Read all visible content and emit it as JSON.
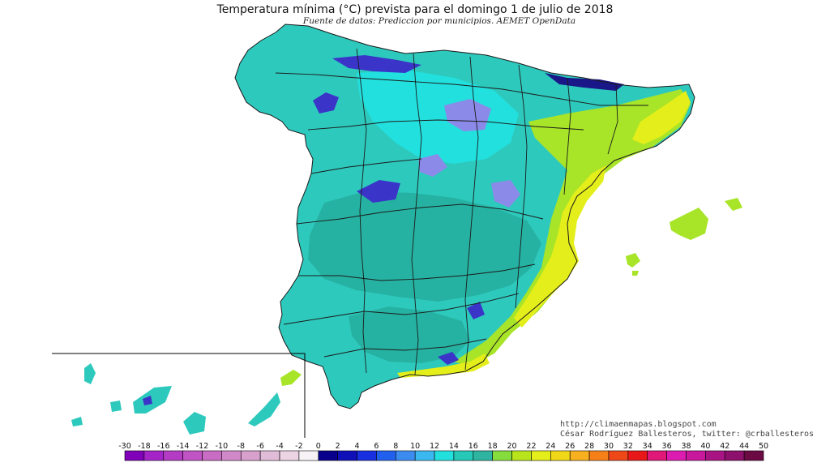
{
  "title": "Temperatura mínima (°C) prevista para el domingo 1 de julio de 2018",
  "source": "Fuente de datos: Prediccion por municipios. AEMET OpenData",
  "credit": {
    "line1": "http://climaenmapas.blogspot.com",
    "line2": "César Rodríguez Ballesteros, twitter: @crballesteros"
  },
  "palette": {
    "base": "#2ec9bd",
    "dark": "#26b2a2",
    "cyan": "#22e0de",
    "yellow_green": "#a8e428",
    "green": "#5fd84a",
    "yellow": "#e4ee1a",
    "blue": "#3a34c8",
    "navy": "#1a1888",
    "lilac": "#8c8ae8",
    "border": "#1a1a1a"
  },
  "legend": {
    "labels": [
      "-30",
      "-18",
      "-16",
      "-14",
      "-12",
      "-10",
      "-8",
      "-6",
      "-4",
      "-2",
      "0",
      "2",
      "4",
      "6",
      "8",
      "10",
      "12",
      "14",
      "16",
      "18",
      "20",
      "22",
      "24",
      "26",
      "28",
      "30",
      "32",
      "34",
      "36",
      "38",
      "40",
      "42",
      "44",
      "50"
    ],
    "colors": [
      "#7f00b8",
      "#a424c8",
      "#b43cc4",
      "#c054c4",
      "#c86cc4",
      "#d088c8",
      "#d8a0cc",
      "#e0bcd8",
      "#ecd4e4",
      "#f6f2f6",
      "#08008a",
      "#1010b8",
      "#1830e0",
      "#2060ec",
      "#3c8cf0",
      "#3cb8f0",
      "#22e0de",
      "#26c8b8",
      "#2eb4a0",
      "#86dc3c",
      "#b8e41c",
      "#e4ee1a",
      "#f0d818",
      "#f6b020",
      "#f68018",
      "#ee4818",
      "#e81818",
      "#e01878",
      "#dc1cb0",
      "#c8189c",
      "#a81484",
      "#8c106c",
      "#6c0a44"
    ]
  }
}
